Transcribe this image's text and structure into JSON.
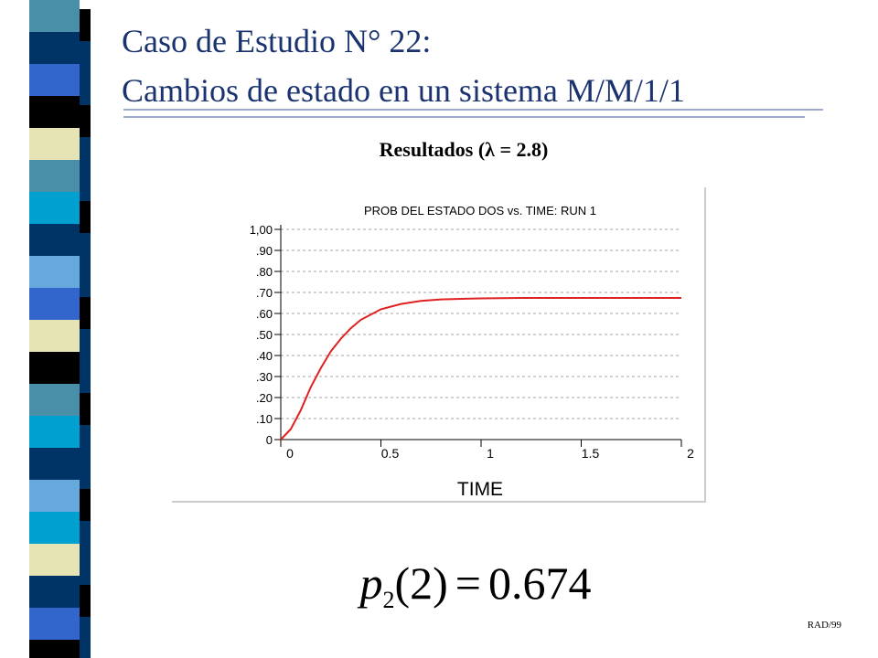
{
  "slide_title": {
    "line1": "Caso de Estudio N° 22:",
    "line2": "Cambios de estado en un sistema M/M/1/1"
  },
  "subtitle": "Resultados (λ = 2.8)",
  "chart_data": {
    "type": "line",
    "title": "PROB DEL ESTADO DOS vs. TIME: RUN 1",
    "x_label": "TIME",
    "x": [
      0,
      0.05,
      0.1,
      0.15,
      0.2,
      0.25,
      0.3,
      0.35,
      0.4,
      0.5,
      0.6,
      0.7,
      0.8,
      1.0,
      1.2,
      1.5,
      2.0
    ],
    "values": [
      0,
      0.05,
      0.14,
      0.25,
      0.34,
      0.42,
      0.48,
      0.53,
      0.57,
      0.62,
      0.645,
      0.66,
      0.667,
      0.672,
      0.674,
      0.674,
      0.674
    ],
    "color": "#e02020",
    "xlim": [
      0,
      2
    ],
    "xticks": [
      0,
      0.5,
      1,
      1.5,
      2
    ],
    "ylim": [
      0,
      1
    ],
    "yticks": [
      0,
      {
        "value": 0.1,
        "label": ".10"
      },
      {
        "value": 0.2,
        "label": ".20"
      },
      {
        "value": 0.3,
        "label": ".30"
      },
      {
        "value": 0.4,
        "label": ".40"
      },
      {
        "value": 0.5,
        "label": ".50"
      },
      {
        "value": 0.6,
        "label": ".60"
      },
      {
        "value": 0.7,
        "label": ".70"
      },
      {
        "value": 0.8,
        "label": ".80"
      },
      {
        "value": 0.9,
        "label": ".90"
      },
      {
        "value": 1,
        "label": "1,00"
      }
    ],
    "grid": true
  },
  "formula": {
    "symbol": "p",
    "subscript": "2",
    "argument": "(2)",
    "equals": "=",
    "value": "0.674"
  },
  "footer": "RAD/99"
}
